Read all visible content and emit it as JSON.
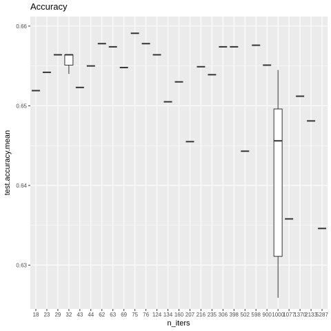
{
  "chart_data": {
    "type": "boxplot",
    "title": "Accuracy",
    "xlabel": "n_iters",
    "ylabel": "test.accuracy.mean",
    "ylim": [
      0.6245,
      0.6612
    ],
    "yticks": [
      0.63,
      0.64,
      0.65,
      0.66
    ],
    "ytick_labels": [
      "0.63",
      "0.64",
      "0.65",
      "0.66"
    ],
    "grid": true,
    "colors": {
      "panel": "#ebebeb",
      "grid_major": "#ffffff",
      "box_line": "#333333",
      "box_fill": "#ffffff"
    },
    "categories": [
      "18",
      "23",
      "29",
      "32",
      "43",
      "44",
      "62",
      "63",
      "69",
      "75",
      "76",
      "124",
      "134",
      "160",
      "207",
      "216",
      "235",
      "306",
      "398",
      "502",
      "598",
      "900",
      "1000",
      "1077",
      "1370",
      "2133",
      "5287"
    ],
    "boxes": [
      {
        "x": "18",
        "min": 0.6519,
        "q1": 0.6519,
        "median": 0.6519,
        "q3": 0.6519,
        "max": 0.6519
      },
      {
        "x": "23",
        "min": 0.6542,
        "q1": 0.6542,
        "median": 0.6542,
        "q3": 0.6542,
        "max": 0.6542
      },
      {
        "x": "29",
        "min": 0.6564,
        "q1": 0.6564,
        "median": 0.6564,
        "q3": 0.6564,
        "max": 0.6564
      },
      {
        "x": "32",
        "min": 0.654,
        "q1": 0.6551,
        "median": 0.6564,
        "q3": 0.6564,
        "max": 0.6564
      },
      {
        "x": "43",
        "min": 0.6523,
        "q1": 0.6523,
        "median": 0.6523,
        "q3": 0.6523,
        "max": 0.6523
      },
      {
        "x": "44",
        "min": 0.655,
        "q1": 0.655,
        "median": 0.655,
        "q3": 0.655,
        "max": 0.655
      },
      {
        "x": "62",
        "min": 0.6578,
        "q1": 0.6578,
        "median": 0.6578,
        "q3": 0.6578,
        "max": 0.6578
      },
      {
        "x": "63",
        "min": 0.6574,
        "q1": 0.6574,
        "median": 0.6574,
        "q3": 0.6574,
        "max": 0.6574
      },
      {
        "x": "69",
        "min": 0.6548,
        "q1": 0.6548,
        "median": 0.6548,
        "q3": 0.6548,
        "max": 0.6548
      },
      {
        "x": "75",
        "min": 0.6591,
        "q1": 0.6591,
        "median": 0.6591,
        "q3": 0.6591,
        "max": 0.6591
      },
      {
        "x": "76",
        "min": 0.6578,
        "q1": 0.6578,
        "median": 0.6578,
        "q3": 0.6578,
        "max": 0.6578
      },
      {
        "x": "124",
        "min": 0.6564,
        "q1": 0.6564,
        "median": 0.6564,
        "q3": 0.6564,
        "max": 0.6564
      },
      {
        "x": "134",
        "min": 0.6505,
        "q1": 0.6505,
        "median": 0.6505,
        "q3": 0.6505,
        "max": 0.6505
      },
      {
        "x": "160",
        "min": 0.653,
        "q1": 0.653,
        "median": 0.653,
        "q3": 0.653,
        "max": 0.653
      },
      {
        "x": "207",
        "min": 0.6455,
        "q1": 0.6455,
        "median": 0.6455,
        "q3": 0.6455,
        "max": 0.6455
      },
      {
        "x": "216",
        "min": 0.6549,
        "q1": 0.6549,
        "median": 0.6549,
        "q3": 0.6549,
        "max": 0.6549
      },
      {
        "x": "235",
        "min": 0.6539,
        "q1": 0.6539,
        "median": 0.6539,
        "q3": 0.6539,
        "max": 0.6539
      },
      {
        "x": "306",
        "min": 0.6574,
        "q1": 0.6574,
        "median": 0.6574,
        "q3": 0.6574,
        "max": 0.6574
      },
      {
        "x": "398",
        "min": 0.6574,
        "q1": 0.6574,
        "median": 0.6574,
        "q3": 0.6574,
        "max": 0.6574
      },
      {
        "x": "502",
        "min": 0.6443,
        "q1": 0.6443,
        "median": 0.6443,
        "q3": 0.6443,
        "max": 0.6443
      },
      {
        "x": "598",
        "min": 0.6576,
        "q1": 0.6576,
        "median": 0.6576,
        "q3": 0.6576,
        "max": 0.6576
      },
      {
        "x": "900",
        "min": 0.6551,
        "q1": 0.6551,
        "median": 0.6551,
        "q3": 0.6551,
        "max": 0.6551
      },
      {
        "x": "1000",
        "min": 0.6259,
        "q1": 0.6311,
        "median": 0.6456,
        "q3": 0.6496,
        "max": 0.6545
      },
      {
        "x": "1077",
        "min": 0.6358,
        "q1": 0.6358,
        "median": 0.6358,
        "q3": 0.6358,
        "max": 0.6358
      },
      {
        "x": "1370",
        "min": 0.6512,
        "q1": 0.6512,
        "median": 0.6512,
        "q3": 0.6512,
        "max": 0.6512
      },
      {
        "x": "2133",
        "min": 0.6481,
        "q1": 0.6481,
        "median": 0.6481,
        "q3": 0.6481,
        "max": 0.6481
      },
      {
        "x": "5287",
        "min": 0.6346,
        "q1": 0.6346,
        "median": 0.6346,
        "q3": 0.6346,
        "max": 0.6346
      }
    ]
  }
}
